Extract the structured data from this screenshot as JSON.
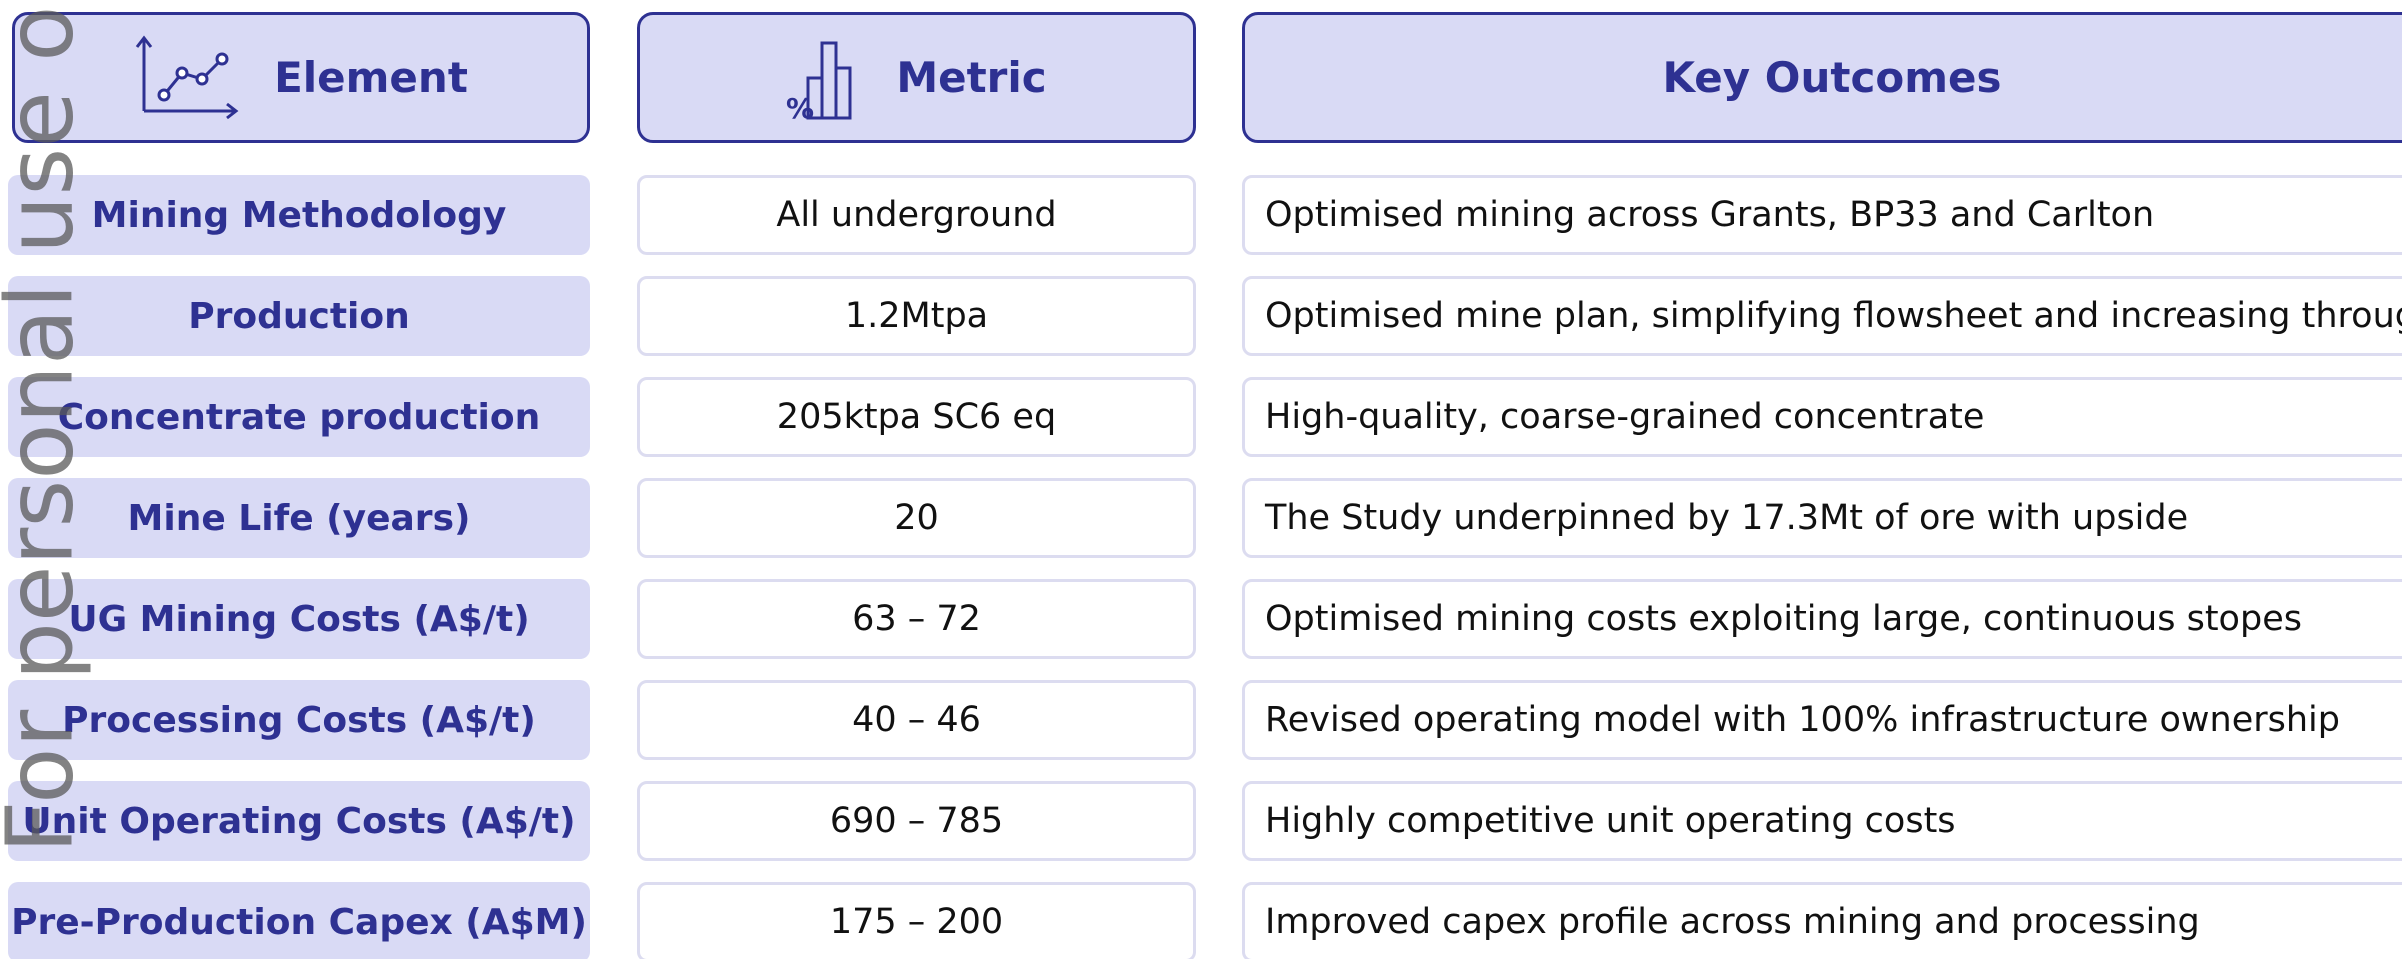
{
  "header": {
    "element": "Element",
    "metric": "Metric",
    "outcomes": "Key Outcomes"
  },
  "watermark": "For personal use only",
  "table": {
    "rows": [
      [
        "Mining Methodology",
        "All underground",
        "Optimised mining across Grants, BP33 and Carlton"
      ],
      [
        "Production",
        "1.2Mtpa",
        "Optimised mine plan, simplifying flowsheet and increasing throughput"
      ],
      [
        "Concentrate production",
        "205ktpa SC6 eq",
        "High-quality, coarse-grained concentrate"
      ],
      [
        "Mine Life (years)",
        "20",
        "The Study underpinned by 17.3Mt of ore with upside"
      ],
      [
        "UG Mining Costs (A$/t)",
        "63 – 72",
        "Optimised mining costs exploiting large, continuous stopes"
      ],
      [
        "Processing Costs (A$/t)",
        "40 – 46",
        "Revised operating model with 100% infrastructure ownership"
      ],
      [
        "Unit Operating Costs (A$/t)",
        "690 – 785",
        "Highly competitive unit operating costs"
      ],
      [
        "Pre-Production Capex (A$M)",
        "175 – 200",
        "Improved capex profile across mining and processing"
      ]
    ]
  }
}
